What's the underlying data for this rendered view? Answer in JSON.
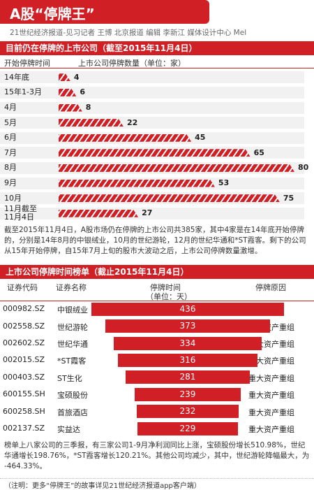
{
  "header": {
    "title": "A股“停牌王”",
    "byline": "21世纪经济报道-见习记者 王博 北京报道  编辑 李新江    媒体设计中心 Mel"
  },
  "section1": {
    "title": "目前仍在停牌的上市公司（截至2015年11月4日）",
    "col_left": "开始停牌时间",
    "col_right": "上市公司停牌数量（单位：家）"
  },
  "section2": {
    "title": "上市公司停牌时间榜单（截止2015年11月4日）",
    "col_code": "证券代码",
    "col_name": "证券名称",
    "col_days": "停牌时间",
    "col_days_unit": "（单位：天）",
    "col_reason": "停牌原因"
  },
  "paragraph1": "截至2015年11月4日，A股市场仍在停牌的上市公司共385家，其中4家是在14年底开始停牌的，分别是14年8月的中银绒业，10月的世纪游轮，12月的世纪华通和*ST霞客。剩下的公司从15年开始停牌，自15年7月上旬的股市大波动之后，上市公司停牌数量激增。",
  "paragraph2": "榜单上八家公司的三季报，有三家公司1-9月净利润同比上涨，宝硕股份增长510.98%，世纪华通增长198.76%，*ST霞客增长120.21%。其他公司均减少，其中，世纪游轮降幅最大，为 -464.33%。",
  "footer_note": "（注明：更多“停牌王”的故事详见21世纪经济报道app客户端）",
  "colors": {
    "accent": "#d11f26",
    "row_bg": "#f1f1f1"
  },
  "chart_data": [
    {
      "type": "bar",
      "orientation": "horizontal",
      "title": "目前仍在停牌的上市公司（截至2015年11月4日）",
      "xlabel": "上市公司停牌数量（单位：家）",
      "ylabel": "开始停牌时间",
      "categories": [
        "14年底",
        "15年1-3月",
        "4月",
        "5月",
        "6月",
        "7月",
        "8月",
        "9月",
        "10月",
        "11月截至11月4日"
      ],
      "values": [
        4,
        6,
        8,
        22,
        45,
        65,
        80,
        53,
        75,
        27
      ],
      "label_lines": [
        [
          "14年底"
        ],
        [
          "15年1-3月"
        ],
        [
          "4月"
        ],
        [
          "5月"
        ],
        [
          "6月"
        ],
        [
          "7月"
        ],
        [
          "8月"
        ],
        [
          "9月"
        ],
        [
          "10月"
        ],
        [
          "11月截至",
          "11月4日"
        ]
      ],
      "xlim": [
        0,
        80
      ],
      "grid": false,
      "legend": "none"
    },
    {
      "type": "table",
      "title": "上市公司停牌时间榜单（截止2015年11月4日）",
      "columns": [
        "证券代码",
        "证券名称",
        "停牌时间（单位：天）",
        "停牌原因"
      ],
      "rows": [
        {
          "code": "000982.SZ",
          "name": "中银绒业",
          "days": 436,
          "reason": "重大事项"
        },
        {
          "code": "002558.SZ",
          "name": "世纪游轮",
          "days": 373,
          "reason": "重大资产重组"
        },
        {
          "code": "002602.SZ",
          "name": "世纪华通",
          "days": 334,
          "reason": "重大资产重组"
        },
        {
          "code": "002015.SZ",
          "name": "*ST霞客",
          "days": 316,
          "reason": "重大资产重组"
        },
        {
          "code": "000403.SZ",
          "name": "ST生化",
          "days": 281,
          "reason": "重大资产重组"
        },
        {
          "code": "600155.SH",
          "name": "宝硕股份",
          "days": 239,
          "reason": "重大资产重组"
        },
        {
          "code": "600258.SH",
          "name": "首旅酒店",
          "days": 232,
          "reason": "重大资产重组"
        },
        {
          "code": "002137.SZ",
          "name": "实益达",
          "days": 229,
          "reason": "重大资产重组"
        }
      ]
    }
  ]
}
